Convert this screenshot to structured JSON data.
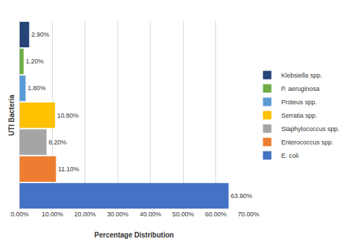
{
  "chart_data": {
    "type": "bar",
    "orientation": "horizontal",
    "x_label": "Percentage Distribution",
    "y_label": "UTI Bacteria",
    "categories": [
      "E. coli",
      "Enterococcus spp.",
      "Staphylococcus spp.",
      "Serratia spp.",
      "Proteus spp.",
      "P. aeruginosa",
      "Klebsiella spp."
    ],
    "values": [
      63.9,
      11.1,
      8.2,
      10.8,
      1.8,
      1.2,
      2.9
    ],
    "value_labels": [
      "63.90%",
      "11.10%",
      "8.20%",
      "10.80%",
      "1.80%",
      "1.20%",
      "2.90%"
    ],
    "colors": [
      "#4472c4",
      "#ed7d31",
      "#a5a5a5",
      "#ffc000",
      "#5b9bd5",
      "#70ad47",
      "#264478"
    ],
    "xlim": [
      0,
      70
    ],
    "xticks": [
      {
        "value": 0,
        "label": "0.00%"
      },
      {
        "value": 10,
        "label": "10.00%"
      },
      {
        "value": 20,
        "label": "20.00%"
      },
      {
        "value": 30,
        "label": "30.00%"
      },
      {
        "value": 40,
        "label": "40.00%"
      },
      {
        "value": 50,
        "label": "50.00%"
      },
      {
        "value": 60,
        "label": "60.00%"
      },
      {
        "value": 70,
        "label": "70.00%"
      }
    ],
    "grid": true,
    "data_labels": true,
    "legend": "right",
    "tick_labels": "x"
  }
}
